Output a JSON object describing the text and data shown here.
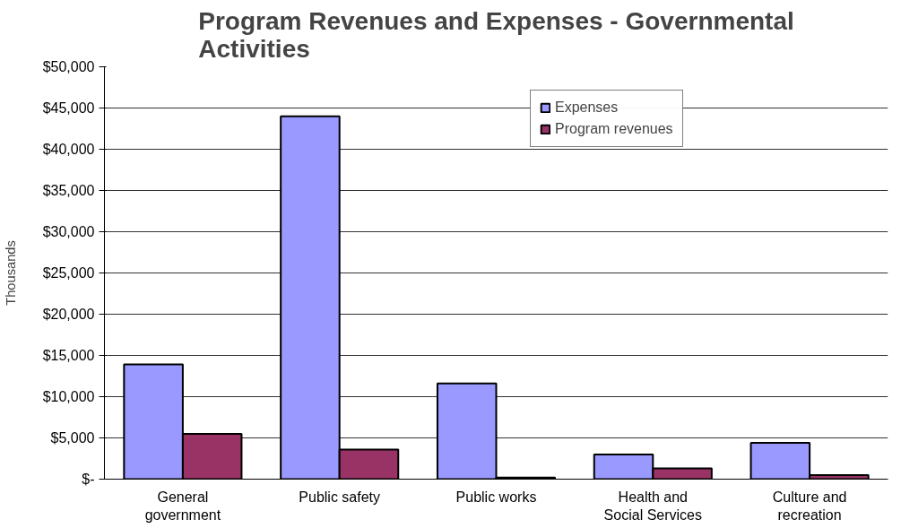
{
  "chart_data": {
    "type": "bar",
    "title": "Program Revenues and Expenses - Governmental Activities",
    "ylabel": "Thousands",
    "categories": [
      "General government",
      "Public safety",
      "Public works",
      "Health and Social Services",
      "Culture and recreation"
    ],
    "series": [
      {
        "name": "Expenses",
        "color": "#9999ff",
        "values": [
          13900,
          44000,
          11600,
          3000,
          4400
        ]
      },
      {
        "name": "Program revenues",
        "color": "#993366",
        "values": [
          5500,
          3600,
          200,
          1300,
          500
        ]
      }
    ],
    "ylim": [
      0,
      50000
    ],
    "yticks": [
      {
        "value": 0,
        "label": "$-"
      },
      {
        "value": 5000,
        "label": "$5,000"
      },
      {
        "value": 10000,
        "label": "$10,000"
      },
      {
        "value": 15000,
        "label": "$15,000"
      },
      {
        "value": 20000,
        "label": "$20,000"
      },
      {
        "value": 25000,
        "label": "$25,000"
      },
      {
        "value": 30000,
        "label": "$30,000"
      },
      {
        "value": 35000,
        "label": "$35,000"
      },
      {
        "value": 40000,
        "label": "$40,000"
      },
      {
        "value": 45000,
        "label": "$45,000"
      },
      {
        "value": 50000,
        "label": "$50,000"
      }
    ],
    "grid": "y",
    "legend": "top right"
  }
}
